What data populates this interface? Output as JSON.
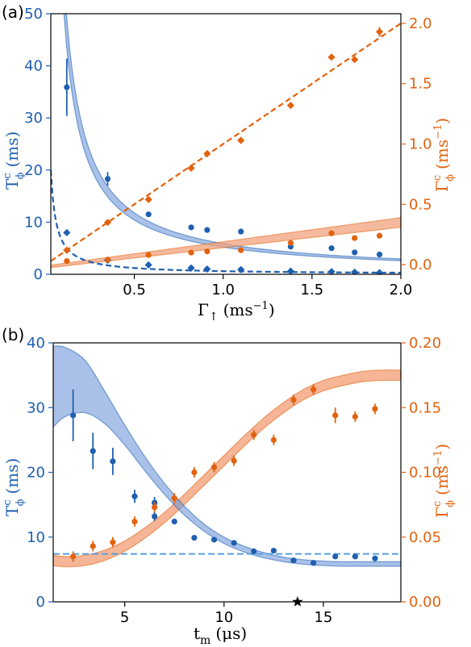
{
  "colors": {
    "blue": "#1f5fb0",
    "blue_band": "#6f98d8",
    "blue_dashed_b": "#5aa0e0",
    "orange": "#e2620e",
    "orange_band": "#f2a27c"
  },
  "chart_data": [
    {
      "panel_label": "(a)",
      "type": "scatter",
      "xlabel_main": "Γ",
      "xlabel_sub": "↑",
      "xlabel_unit": "(ms",
      "xlabel_unit_exp": "−1",
      "xlabel_unit_close": ")",
      "ylabel_left_main": "T",
      "ylabel_left_sup": "c",
      "ylabel_left_sub": "ϕ",
      "ylabel_left_unit": "(ms)",
      "ylabel_right_main": "Γ",
      "ylabel_right_sup": "c",
      "ylabel_right_sub": "ϕ",
      "ylabel_right_unit": "(ms",
      "ylabel_right_unit_exp": "−1",
      "ylabel_right_unit_close": ")",
      "xlim": [
        0.03,
        2.0
      ],
      "ylim_left": [
        0,
        50
      ],
      "ylim_right": [
        -0.08,
        2.08
      ],
      "x_ticks": [
        "0.5",
        "1.0",
        "1.5",
        "2.0"
      ],
      "x_tick_values": [
        0.5,
        1.0,
        1.5,
        2.0
      ],
      "y_left_ticks": [
        "0",
        "10",
        "20",
        "30",
        "40",
        "50"
      ],
      "y_left_tick_values": [
        0,
        10,
        20,
        30,
        40,
        50
      ],
      "y_right_ticks": [
        "0.0",
        "0.5",
        "1.0",
        "1.5",
        "2.0"
      ],
      "y_right_tick_values": [
        0.0,
        0.5,
        1.0,
        1.5,
        2.0
      ],
      "series": [
        {
          "axis": "left",
          "marker": "circle",
          "color": "blue",
          "x": [
            0.12,
            0.35,
            0.58,
            0.82,
            0.91,
            1.1,
            1.38,
            1.61,
            1.74,
            1.88
          ],
          "y": [
            35.9,
            18.3,
            11.5,
            9.0,
            8.5,
            8.2,
            5.3,
            5.0,
            4.2,
            3.8
          ],
          "err": [
            5.5,
            1.3,
            0,
            0,
            0,
            0,
            0,
            0,
            0,
            0
          ]
        },
        {
          "axis": "left",
          "marker": "diamond",
          "color": "blue",
          "x": [
            0.12,
            0.35,
            0.58,
            0.82,
            0.91,
            1.1,
            1.38,
            1.61,
            1.74,
            1.88
          ],
          "y": [
            8.0,
            2.7,
            1.8,
            1.2,
            1.0,
            0.9,
            0.6,
            0.5,
            0.4,
            0.3
          ]
        },
        {
          "axis": "right",
          "marker": "circle",
          "color": "orange",
          "x": [
            0.12,
            0.35,
            0.58,
            0.82,
            0.91,
            1.1,
            1.38,
            1.61,
            1.74,
            1.88
          ],
          "y": [
            0.03,
            0.04,
            0.08,
            0.1,
            0.11,
            0.12,
            0.18,
            0.26,
            0.22,
            0.24
          ]
        },
        {
          "axis": "right",
          "marker": "diamond",
          "color": "orange",
          "x": [
            0.12,
            0.35,
            0.58,
            0.82,
            0.91,
            1.1,
            1.38,
            1.61,
            1.74,
            1.88
          ],
          "y": [
            0.12,
            0.35,
            0.54,
            0.8,
            0.92,
            1.03,
            1.32,
            1.72,
            1.7,
            1.93
          ],
          "err": [
            0,
            0,
            0,
            0,
            0,
            0,
            0,
            0,
            0,
            0.04
          ]
        }
      ],
      "fits": {
        "blue_band_model": "T = A / x",
        "blue_band_A": [
          5.2,
          5.9
        ],
        "blue_dashed_A": 0.6,
        "orange_band_intercept": [
          -0.03,
          -0.01
        ],
        "orange_band_slope": [
          0.17,
          0.2
        ],
        "orange_dashed_intercept": 0.0,
        "orange_dashed_slope": 1.0
      }
    },
    {
      "panel_label": "(b)",
      "type": "scatter",
      "xlabel_main": "t",
      "xlabel_sub": "m",
      "xlabel_unit": "(μs)",
      "ylabel_left_main": "T",
      "ylabel_left_sup": "c",
      "ylabel_left_sub": "ϕ",
      "ylabel_left_unit": "(ms)",
      "ylabel_right_main": "Γ",
      "ylabel_right_sup": "c",
      "ylabel_right_sub": "ϕ",
      "ylabel_right_unit": "(ms",
      "ylabel_right_unit_exp": "−1",
      "ylabel_right_unit_close": ")",
      "xlim": [
        1.4,
        18.9
      ],
      "ylim_left": [
        0,
        40
      ],
      "ylim_right": [
        0,
        0.2
      ],
      "x_ticks": [
        "5",
        "10",
        "15"
      ],
      "x_tick_values": [
        5,
        10,
        15
      ],
      "y_left_ticks": [
        "0",
        "10",
        "20",
        "30",
        "40"
      ],
      "y_left_tick_values": [
        0,
        10,
        20,
        30,
        40
      ],
      "y_right_ticks": [
        "0.00",
        "0.05",
        "0.10",
        "0.15",
        "0.20"
      ],
      "y_right_tick_values": [
        0,
        0.05,
        0.1,
        0.15,
        0.2
      ],
      "series": [
        {
          "axis": "left",
          "marker": "circle",
          "color": "blue",
          "x": [
            2.4,
            3.4,
            4.4,
            5.5,
            6.5,
            6.5,
            7.5,
            8.5,
            9.5,
            10.5,
            11.5,
            12.5,
            13.5,
            14.5,
            15.6,
            16.6,
            17.6
          ],
          "y": [
            28.8,
            23.3,
            21.7,
            16.3,
            15.3,
            13.2,
            12.4,
            9.9,
            9.6,
            9.1,
            7.8,
            7.9,
            6.4,
            6.0,
            7.0,
            7.0,
            6.7
          ],
          "err": [
            4.0,
            2.8,
            2.1,
            1.0,
            0.9,
            0.7,
            0,
            0,
            0,
            0,
            0,
            0,
            0,
            0,
            0,
            0,
            0
          ]
        },
        {
          "axis": "right",
          "marker": "circle",
          "color": "orange",
          "x": [
            2.4,
            3.4,
            4.4,
            5.5,
            6.5,
            7.5,
            8.5,
            9.5,
            10.5,
            11.5,
            12.5,
            13.5,
            14.5,
            15.6,
            16.6,
            17.6
          ],
          "y": [
            0.035,
            0.043,
            0.046,
            0.062,
            0.073,
            0.08,
            0.1,
            0.104,
            0.109,
            0.129,
            0.125,
            0.156,
            0.164,
            0.144,
            0.143,
            0.149
          ],
          "err": [
            0.004,
            0.004,
            0.004,
            0.004,
            0.004,
            0.004,
            0.004,
            0.004,
            0.004,
            0.004,
            0.004,
            0.004,
            0.004,
            0.006,
            0.004,
            0.004
          ]
        }
      ],
      "dashed_line_left_value": 7.4,
      "star_x": 13.7,
      "fits": {
        "blue_band_upper": [
          [
            1.4,
            39.5
          ],
          [
            2.0,
            39.3
          ],
          [
            3.0,
            37.3
          ],
          [
            4.0,
            32.5
          ],
          [
            5.0,
            27.3
          ],
          [
            6.0,
            22.5
          ],
          [
            7.0,
            18.3
          ],
          [
            8.0,
            14.8
          ],
          [
            9.0,
            12.0
          ],
          [
            10.0,
            10.0
          ],
          [
            11.0,
            8.6
          ],
          [
            12.0,
            7.6
          ],
          [
            13.0,
            6.9
          ],
          [
            14.0,
            6.5
          ],
          [
            15.0,
            6.3
          ],
          [
            16.0,
            6.2
          ],
          [
            17.0,
            6.2
          ],
          [
            18.9,
            6.2
          ]
        ],
        "blue_band_lower": [
          [
            1.4,
            27.0
          ],
          [
            2.0,
            28.6
          ],
          [
            3.0,
            29.2
          ],
          [
            4.0,
            27.5
          ],
          [
            5.0,
            24.2
          ],
          [
            6.0,
            20.3
          ],
          [
            7.0,
            16.6
          ],
          [
            8.0,
            13.4
          ],
          [
            9.0,
            10.9
          ],
          [
            10.0,
            9.0
          ],
          [
            11.0,
            7.7
          ],
          [
            12.0,
            6.8
          ],
          [
            13.0,
            6.2
          ],
          [
            14.0,
            5.8
          ],
          [
            15.0,
            5.6
          ],
          [
            16.0,
            5.5
          ],
          [
            17.0,
            5.5
          ],
          [
            18.9,
            5.5
          ]
        ],
        "orange_band_upper": [
          [
            1.4,
            0.036
          ],
          [
            2.0,
            0.035
          ],
          [
            3.0,
            0.036
          ],
          [
            4.0,
            0.04
          ],
          [
            5.0,
            0.047
          ],
          [
            6.0,
            0.057
          ],
          [
            7.0,
            0.069
          ],
          [
            8.0,
            0.083
          ],
          [
            9.0,
            0.098
          ],
          [
            10.0,
            0.113
          ],
          [
            11.0,
            0.128
          ],
          [
            12.0,
            0.142
          ],
          [
            13.0,
            0.154
          ],
          [
            14.0,
            0.164
          ],
          [
            15.0,
            0.171
          ],
          [
            16.0,
            0.175
          ],
          [
            17.0,
            0.178
          ],
          [
            18.0,
            0.179
          ],
          [
            18.9,
            0.179
          ]
        ],
        "orange_band_lower": [
          [
            1.4,
            0.028
          ],
          [
            2.0,
            0.027
          ],
          [
            3.0,
            0.028
          ],
          [
            4.0,
            0.032
          ],
          [
            5.0,
            0.039
          ],
          [
            6.0,
            0.049
          ],
          [
            7.0,
            0.061
          ],
          [
            8.0,
            0.075
          ],
          [
            9.0,
            0.09
          ],
          [
            10.0,
            0.105
          ],
          [
            11.0,
            0.12
          ],
          [
            12.0,
            0.134
          ],
          [
            13.0,
            0.146
          ],
          [
            14.0,
            0.156
          ],
          [
            15.0,
            0.163
          ],
          [
            16.0,
            0.167
          ],
          [
            17.0,
            0.17
          ],
          [
            18.0,
            0.171
          ],
          [
            18.9,
            0.171
          ]
        ]
      }
    }
  ]
}
